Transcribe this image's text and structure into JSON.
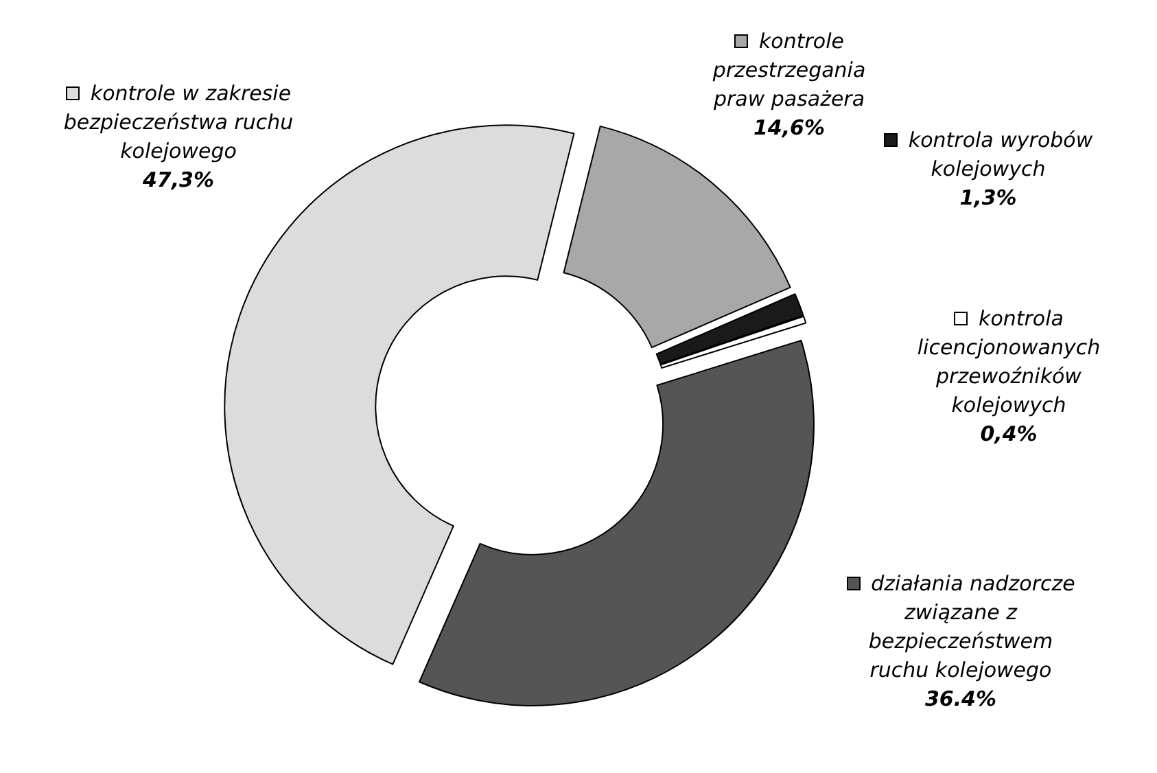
{
  "chart_data": {
    "type": "donut",
    "categories": [
      "kontrole przestrzegania praw pasażera",
      "kontrola wyrobów kolejowych",
      "kontrola licencjonowanych przewoźników kolejowych",
      "działania nadzorcze związane z bezpieczeństwem ruchu kolejowego",
      "kontrole w zakresie bezpieczeństwa ruchu kolejowego"
    ],
    "values": [
      14.6,
      1.3,
      0.4,
      36.4,
      47.3
    ],
    "value_labels": [
      "14,6%",
      "1,3%",
      "0,4%",
      "36.4%",
      "47,3%"
    ],
    "colors": [
      "#a8a8a8",
      "#1a1a1a",
      "#ffffff",
      "#555555",
      "#dcdcdc"
    ],
    "legend": "right"
  }
}
